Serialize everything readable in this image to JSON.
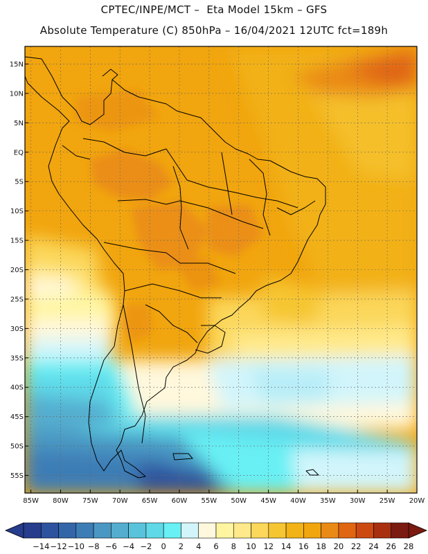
{
  "header": {
    "line1": "CPTEC/INPE/MCT –  Eta Model 15km – GFS",
    "line2": "Absolute Temperature (C) 850hPa – 16/04/2021 12UTC fct=189h"
  },
  "map": {
    "lat_labels": [
      "15N",
      "10N",
      "5N",
      "EQ",
      "5S",
      "10S",
      "15S",
      "20S",
      "25S",
      "30S",
      "35S",
      "40S",
      "45S",
      "50S",
      "55S"
    ],
    "lon_labels": [
      "85W",
      "80W",
      "75W",
      "70W",
      "65W",
      "60W",
      "55W",
      "50W",
      "45W",
      "40W",
      "35W",
      "30W",
      "25W",
      "20W"
    ],
    "lat_range": [
      18,
      -58
    ],
    "lon_range": [
      -86,
      -20
    ],
    "grid": true
  },
  "colorbar": {
    "labels": [
      "−14",
      "−12",
      "−10",
      "−8",
      "−6",
      "−4",
      "−2",
      "0",
      "2",
      "4",
      "6",
      "8",
      "10",
      "12",
      "14",
      "16",
      "18",
      "20",
      "22",
      "24",
      "26",
      "28"
    ],
    "colors": [
      "#263c8c",
      "#2d529e",
      "#3366a8",
      "#3d7db6",
      "#4a97c3",
      "#54adcf",
      "#59c3dc",
      "#5fd9e8",
      "#68f0f4",
      "#d2f5fb",
      "#fff8dc",
      "#fff5a0",
      "#ffe98a",
      "#fbd75a",
      "#f6c632",
      "#f2b316",
      "#f1a50e",
      "#ea8a16",
      "#e06612",
      "#cc4a12",
      "#a83010",
      "#7a1a10"
    ],
    "under_color": "#263c8c",
    "over_color": "#7a1a10"
  }
}
